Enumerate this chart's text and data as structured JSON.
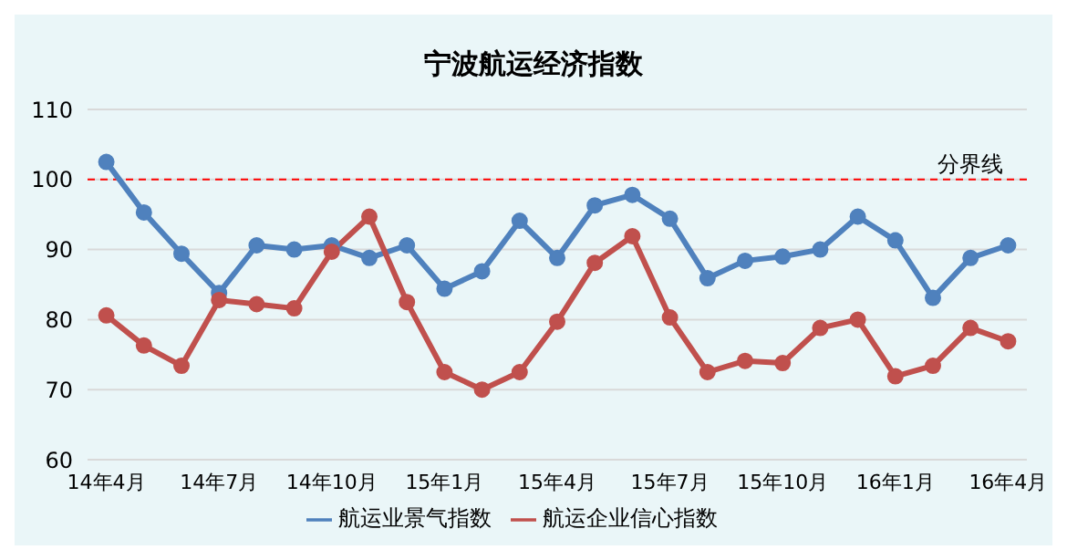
{
  "chart_data": {
    "type": "line",
    "title": "宁波航运经济指数",
    "categories": [
      "14年4月",
      null,
      null,
      "14年7月",
      null,
      null,
      "14年10月",
      null,
      null,
      "15年1月",
      null,
      null,
      "15年4月",
      null,
      null,
      "15年7月",
      null,
      null,
      "15年10月",
      null,
      null,
      "16年1月",
      null,
      null,
      "16年4月"
    ],
    "series": [
      {
        "name": "航运业景气指数",
        "color": "#4f81bd",
        "values": [
          102.5,
          95.3,
          89.4,
          83.8,
          90.6,
          90,
          90.6,
          88.8,
          90.6,
          84.4,
          86.9,
          94.1,
          88.8,
          96.3,
          97.8,
          94.4,
          85.9,
          88.4,
          89,
          90,
          94.7,
          91.3,
          83.1,
          88.8,
          90.6
        ]
      },
      {
        "name": "航运企业信心指数",
        "color": "#c0504d",
        "values": [
          80.6,
          76.3,
          73.4,
          82.8,
          82.2,
          81.6,
          89.7,
          94.7,
          82.5,
          72.5,
          70,
          72.5,
          79.7,
          88.1,
          91.9,
          80.3,
          72.5,
          74.1,
          73.8,
          78.8,
          80,
          71.9,
          73.4,
          78.8,
          76.9
        ]
      }
    ],
    "ylim": [
      60,
      110
    ],
    "yticks": [
      60,
      70,
      80,
      90,
      100,
      110
    ],
    "grid": "y",
    "legend": "bottom",
    "marker": "circle",
    "line_style": "solid",
    "ref_lines": [
      {
        "axis": "y",
        "value": 100,
        "label": "分界线",
        "color": "#ff0000",
        "line_style": "dashed"
      }
    ]
  }
}
